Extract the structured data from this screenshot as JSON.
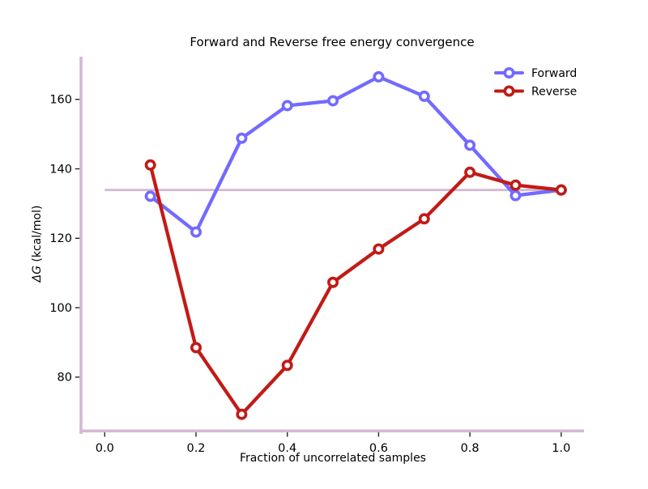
{
  "chart_data": {
    "type": "line",
    "title": "Forward and Reverse free energy convergence",
    "xlabel": "Fraction of uncorrelated samples",
    "ylabel_italic": "ΔG",
    "ylabel_unit": " (kcal/mol)",
    "x": [
      0.1,
      0.2,
      0.3,
      0.4,
      0.5,
      0.6,
      0.7,
      0.8,
      0.9,
      1.0
    ],
    "series": [
      {
        "name": "Forward",
        "color": "#736AFF",
        "values": [
          132.1,
          121.8,
          148.8,
          158.2,
          159.6,
          166.5,
          160.9,
          146.8,
          132.3,
          133.9
        ]
      },
      {
        "name": "Reverse",
        "color": "#C11B17",
        "values": [
          141.1,
          88.5,
          69.3,
          83.4,
          107.3,
          116.9,
          125.6,
          139.0,
          135.3,
          133.9
        ]
      }
    ],
    "final_value_band": {
      "value": 133.9,
      "x_start": 0.0,
      "x_end": 1.0,
      "color": "#D2B9D3"
    },
    "x_ticks": [
      0.0,
      0.2,
      0.4,
      0.6,
      0.8,
      1.0
    ],
    "x_tick_labels": [
      "0.0",
      "0.2",
      "0.4",
      "0.6",
      "0.8",
      "1.0"
    ],
    "y_ticks": [
      80,
      100,
      120,
      140,
      160
    ],
    "y_tick_labels": [
      "80",
      "100",
      "120",
      "140",
      "160"
    ],
    "xlim": [
      -0.052,
      1.05
    ],
    "ylim": [
      64.5,
      172.3
    ],
    "grid": false,
    "legend_position": "upper right",
    "legend_frame": false,
    "spine_color": "#D2B9D3",
    "tick_color": "#262626",
    "marker": "o",
    "marker_face": "#ffffff"
  }
}
